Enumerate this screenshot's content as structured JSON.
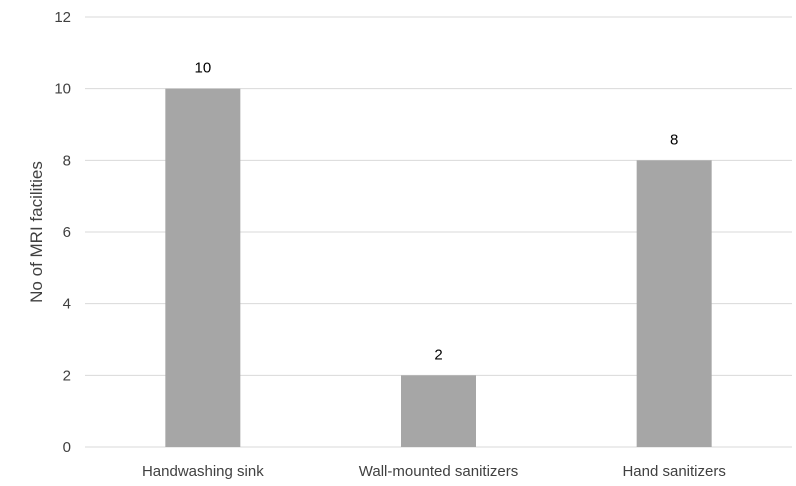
{
  "chart_data": {
    "type": "bar",
    "title": "",
    "xlabel": "",
    "ylabel": "No of MRI facilities",
    "categories": [
      "Handwashing sink",
      "Wall-mounted sanitizers",
      "Hand sanitizers"
    ],
    "values": [
      10,
      2,
      8
    ],
    "data_labels": [
      "10",
      "2",
      "8"
    ],
    "ylim": [
      0,
      12
    ],
    "yticks": [
      0,
      2,
      4,
      6,
      8,
      10,
      12
    ],
    "ytick_labels": [
      "0",
      "2",
      "4",
      "6",
      "8",
      "10",
      "12"
    ],
    "grid": true,
    "legend": "none",
    "bar_color": "#a6a6a6"
  }
}
